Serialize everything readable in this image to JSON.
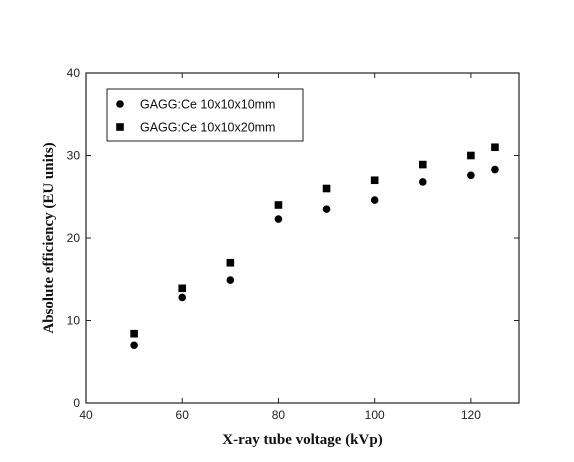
{
  "chart_data": {
    "type": "scatter",
    "title": "",
    "xlabel": "X-ray tube voltage (kVp)",
    "ylabel": "Absolute efficiency (EU units)",
    "xlim": [
      40,
      130
    ],
    "ylim": [
      0,
      40
    ],
    "xticks": [
      40,
      60,
      80,
      100,
      120
    ],
    "yticks": [
      0,
      10,
      20,
      30,
      40
    ],
    "grid": false,
    "legend_position": "top-left",
    "series": [
      {
        "name": "GAGG:Ce 10x10x10mm",
        "marker": "circle",
        "color": "#000000",
        "x": [
          50,
          60,
          70,
          80,
          90,
          100,
          110,
          120,
          125
        ],
        "y": [
          7.0,
          12.8,
          14.9,
          22.3,
          23.5,
          24.6,
          26.8,
          27.6,
          28.3
        ]
      },
      {
        "name": "GAGG:Ce 10x10x20mm",
        "marker": "square",
        "color": "#000000",
        "x": [
          50,
          60,
          70,
          80,
          90,
          100,
          110,
          120,
          125
        ],
        "y": [
          8.4,
          13.9,
          17.0,
          24.0,
          26.0,
          27.0,
          28.9,
          30.0,
          31.0
        ]
      }
    ]
  }
}
